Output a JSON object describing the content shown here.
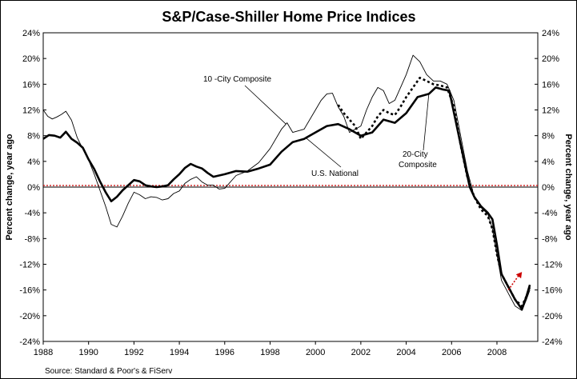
{
  "chart_data": {
    "type": "line",
    "title": "S&P/Case-Shiller Home Price Indices",
    "ylabel": "Percent change, year ago",
    "ylabel_right": "Percent change, year ago",
    "source": "Source: Standard & Poor's & FiServ",
    "xlim": [
      1988,
      2009.8
    ],
    "ylim": [
      -24,
      24
    ],
    "x_ticks": [
      1988,
      1990,
      1992,
      1994,
      1996,
      1998,
      2000,
      2002,
      2004,
      2006,
      2008
    ],
    "x_tick_labels": [
      "1988",
      "1990",
      "1992",
      "1994",
      "1996",
      "1998",
      "2000",
      "2002",
      "2004",
      "2006",
      "2008"
    ],
    "y_ticks": [
      -24,
      -20,
      -16,
      -12,
      -8,
      -4,
      0,
      4,
      8,
      12,
      16,
      20,
      24
    ],
    "y_tick_labels": [
      "-24%",
      "-20%",
      "-16%",
      "-12%",
      "-8%",
      "-4%",
      "0%",
      "4%",
      "8%",
      "12%",
      "16%",
      "20%",
      "24%"
    ],
    "zero_line_color": "#cc0000",
    "series": [
      {
        "name": "U.S. National",
        "style": "thick-solid",
        "points": [
          [
            1988.0,
            7.5
          ],
          [
            1988.25,
            8.1
          ],
          [
            1988.5,
            8.0
          ],
          [
            1988.75,
            7.7
          ],
          [
            1989.0,
            8.6
          ],
          [
            1989.25,
            7.5
          ],
          [
            1989.5,
            6.9
          ],
          [
            1989.75,
            6.1
          ],
          [
            1990.0,
            4.3
          ],
          [
            1990.25,
            2.8
          ],
          [
            1990.5,
            0.9
          ],
          [
            1990.75,
            -0.8
          ],
          [
            1991.0,
            -2.2
          ],
          [
            1991.25,
            -1.5
          ],
          [
            1991.5,
            -0.5
          ],
          [
            1991.75,
            0.3
          ],
          [
            1992.0,
            1.1
          ],
          [
            1992.25,
            0.9
          ],
          [
            1992.5,
            0.3
          ],
          [
            1992.75,
            0.1
          ],
          [
            1993.0,
            0.0
          ],
          [
            1993.25,
            0.1
          ],
          [
            1993.5,
            0.3
          ],
          [
            1993.75,
            1.2
          ],
          [
            1994.0,
            2.0
          ],
          [
            1994.25,
            3.0
          ],
          [
            1994.5,
            3.6
          ],
          [
            1994.75,
            3.2
          ],
          [
            1995.0,
            2.9
          ],
          [
            1995.25,
            2.2
          ],
          [
            1995.5,
            1.6
          ],
          [
            1995.75,
            1.8
          ],
          [
            1996.0,
            2.0
          ],
          [
            1996.5,
            2.5
          ],
          [
            1997.0,
            2.4
          ],
          [
            1997.5,
            2.9
          ],
          [
            1998.0,
            3.5
          ],
          [
            1998.5,
            5.5
          ],
          [
            1999.0,
            7.0
          ],
          [
            1999.5,
            7.5
          ],
          [
            2000.0,
            8.5
          ],
          [
            2000.5,
            9.5
          ],
          [
            2001.0,
            9.8
          ],
          [
            2001.5,
            9.0
          ],
          [
            2002.0,
            8.0
          ],
          [
            2002.5,
            8.5
          ],
          [
            2003.0,
            10.5
          ],
          [
            2003.5,
            10.0
          ],
          [
            2004.0,
            11.5
          ],
          [
            2004.5,
            14.0
          ],
          [
            2005.0,
            14.5
          ],
          [
            2005.3,
            15.5
          ],
          [
            2005.6,
            15.2
          ],
          [
            2005.9,
            15.0
          ],
          [
            2006.2,
            10.0
          ],
          [
            2006.5,
            5.0
          ],
          [
            2006.8,
            0.0
          ],
          [
            2007.0,
            -1.5
          ],
          [
            2007.3,
            -3.0
          ],
          [
            2007.6,
            -4.0
          ],
          [
            2007.8,
            -5.0
          ],
          [
            2008.0,
            -9.0
          ],
          [
            2008.2,
            -13.5
          ],
          [
            2008.5,
            -15.5
          ],
          [
            2008.8,
            -17.5
          ],
          [
            2009.1,
            -19.0
          ],
          [
            2009.3,
            -17.0
          ],
          [
            2009.45,
            -15.2
          ]
        ]
      },
      {
        "name": "10 -City Composite",
        "style": "thin-solid",
        "points": [
          [
            1988.0,
            12.0
          ],
          [
            1988.2,
            11.0
          ],
          [
            1988.4,
            10.6
          ],
          [
            1988.6,
            10.9
          ],
          [
            1988.8,
            11.3
          ],
          [
            1989.0,
            11.8
          ],
          [
            1989.25,
            10.4
          ],
          [
            1989.5,
            7.7
          ],
          [
            1989.75,
            5.9
          ],
          [
            1990.0,
            4.2
          ],
          [
            1990.25,
            2.0
          ],
          [
            1990.5,
            -0.5
          ],
          [
            1990.75,
            -3.0
          ],
          [
            1991.0,
            -5.8
          ],
          [
            1991.25,
            -6.2
          ],
          [
            1991.5,
            -4.5
          ],
          [
            1991.75,
            -2.5
          ],
          [
            1992.0,
            -0.8
          ],
          [
            1992.25,
            -1.2
          ],
          [
            1992.5,
            -1.8
          ],
          [
            1992.75,
            -1.5
          ],
          [
            1993.0,
            -1.6
          ],
          [
            1993.25,
            -2.0
          ],
          [
            1993.5,
            -1.8
          ],
          [
            1993.75,
            -1.0
          ],
          [
            1994.0,
            -0.6
          ],
          [
            1994.25,
            0.6
          ],
          [
            1994.5,
            1.2
          ],
          [
            1994.75,
            1.6
          ],
          [
            1995.0,
            0.8
          ],
          [
            1995.25,
            0.3
          ],
          [
            1995.5,
            0.3
          ],
          [
            1995.75,
            -0.3
          ],
          [
            1996.0,
            -0.2
          ],
          [
            1996.5,
            1.8
          ],
          [
            1997.0,
            2.5
          ],
          [
            1997.5,
            3.8
          ],
          [
            1998.0,
            6.0
          ],
          [
            1998.5,
            9.0
          ],
          [
            1998.75,
            10.0
          ],
          [
            1999.0,
            8.5
          ],
          [
            1999.5,
            9.0
          ],
          [
            2000.0,
            12.0
          ],
          [
            2000.25,
            13.5
          ],
          [
            2000.5,
            14.5
          ],
          [
            2000.75,
            14.6
          ],
          [
            2001.0,
            12.5
          ],
          [
            2001.25,
            11.0
          ],
          [
            2001.5,
            8.5
          ],
          [
            2001.75,
            9.0
          ],
          [
            2002.0,
            9.5
          ],
          [
            2002.25,
            12.0
          ],
          [
            2002.5,
            14.0
          ],
          [
            2002.75,
            15.5
          ],
          [
            2003.0,
            15.0
          ],
          [
            2003.25,
            13.0
          ],
          [
            2003.5,
            13.5
          ],
          [
            2003.75,
            15.5
          ],
          [
            2004.0,
            17.5
          ],
          [
            2004.3,
            20.5
          ],
          [
            2004.6,
            19.5
          ],
          [
            2004.9,
            17.5
          ],
          [
            2005.2,
            16.5
          ],
          [
            2005.5,
            16.5
          ],
          [
            2005.8,
            16.0
          ],
          [
            2006.1,
            13.5
          ],
          [
            2006.4,
            8.0
          ],
          [
            2006.7,
            2.5
          ],
          [
            2007.0,
            -1.5
          ],
          [
            2007.3,
            -3.2
          ],
          [
            2007.6,
            -4.2
          ],
          [
            2007.8,
            -6.5
          ],
          [
            2008.0,
            -10.5
          ],
          [
            2008.2,
            -14.5
          ],
          [
            2008.5,
            -16.5
          ],
          [
            2008.8,
            -18.5
          ],
          [
            2009.1,
            -19.2
          ],
          [
            2009.3,
            -17.5
          ],
          [
            2009.45,
            -16.0
          ]
        ]
      },
      {
        "name": "20-City Composite",
        "style": "dashed",
        "points": [
          [
            2001.0,
            12.8
          ],
          [
            2001.25,
            11.5
          ],
          [
            2001.5,
            10.5
          ],
          [
            2001.75,
            9.5
          ],
          [
            2002.0,
            7.5
          ],
          [
            2002.25,
            8.5
          ],
          [
            2002.5,
            9.5
          ],
          [
            2002.75,
            11.0
          ],
          [
            2003.0,
            12.0
          ],
          [
            2003.25,
            11.5
          ],
          [
            2003.5,
            11.2
          ],
          [
            2003.75,
            12.5
          ],
          [
            2004.0,
            14.0
          ],
          [
            2004.3,
            15.5
          ],
          [
            2004.6,
            17.0
          ],
          [
            2004.9,
            16.5
          ],
          [
            2005.2,
            16.0
          ],
          [
            2005.5,
            15.8
          ],
          [
            2005.8,
            15.5
          ],
          [
            2006.1,
            12.5
          ],
          [
            2006.4,
            6.5
          ],
          [
            2006.7,
            1.5
          ],
          [
            2007.0,
            -1.5
          ],
          [
            2007.3,
            -3.5
          ],
          [
            2007.6,
            -4.5
          ],
          [
            2007.8,
            -6.5
          ],
          [
            2008.0,
            -10.5
          ],
          [
            2008.2,
            -13.5
          ],
          [
            2008.5,
            -15.5
          ],
          [
            2008.8,
            -17.5
          ],
          [
            2009.1,
            -18.5
          ],
          [
            2009.3,
            -17.0
          ],
          [
            2009.45,
            -15.5
          ]
        ]
      }
    ],
    "annotations": [
      {
        "text": "10 -City Composite",
        "target_series": "10 -City Composite"
      },
      {
        "text": "U.S. National",
        "target_series": "U.S. National"
      },
      {
        "text": "20-City",
        "target_series": "20-City Composite"
      },
      {
        "text": "Composite",
        "target_series": "20-City Composite"
      }
    ],
    "arrow": {
      "from": [
        2008.5,
        -16.0
      ],
      "to": [
        2009.1,
        -13.2
      ],
      "color": "#cc0000",
      "style": "dotted"
    }
  }
}
